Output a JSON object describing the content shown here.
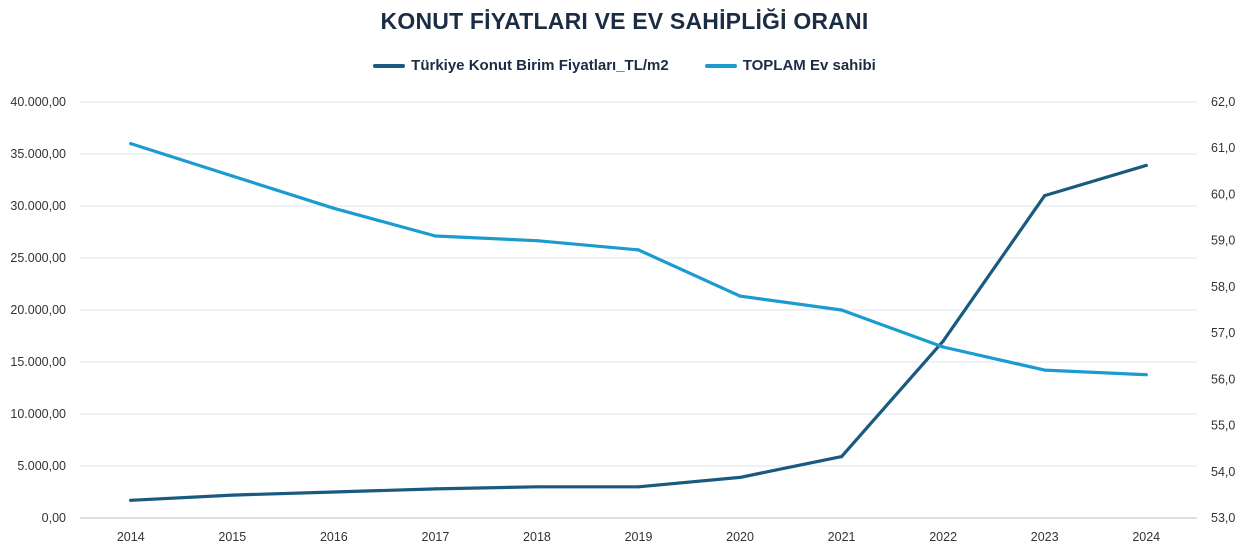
{
  "chart_data": {
    "type": "line",
    "title": "KONUT FİYATLARI VE EV SAHİPLİĞİ ORANI",
    "x": [
      "2014",
      "2015",
      "2016",
      "2017",
      "2018",
      "2019",
      "2020",
      "2021",
      "2022",
      "2023",
      "2024"
    ],
    "series": [
      {
        "name": "Türkiye Konut Birim Fiyatları_TL/m2",
        "axis": "left",
        "color": "#1a5a7f",
        "values": [
          1700,
          2200,
          2500,
          2800,
          3000,
          3000,
          3900,
          5900,
          17000,
          31000,
          33900
        ]
      },
      {
        "name": "TOPLAM Ev sahibi",
        "axis": "right",
        "color": "#1c9bd1",
        "values": [
          61.1,
          60.4,
          59.7,
          59.1,
          59.0,
          58.8,
          57.8,
          57.5,
          56.7,
          56.2,
          56.1
        ]
      }
    ],
    "y_left": {
      "ylim": [
        0,
        40000
      ],
      "ticks": [
        "0,00",
        "5.000,00",
        "10.000,00",
        "15.000,00",
        "20.000,00",
        "25.000,00",
        "30.000,00",
        "35.000,00",
        "40.000,00"
      ]
    },
    "y_right": {
      "ylim": [
        53,
        62
      ],
      "ticks": [
        "53,0",
        "54,0",
        "55,0",
        "56,0",
        "57,0",
        "58,0",
        "59,0",
        "60,0",
        "61,0",
        "62,0"
      ]
    },
    "grid": true,
    "legend_position": "top"
  }
}
